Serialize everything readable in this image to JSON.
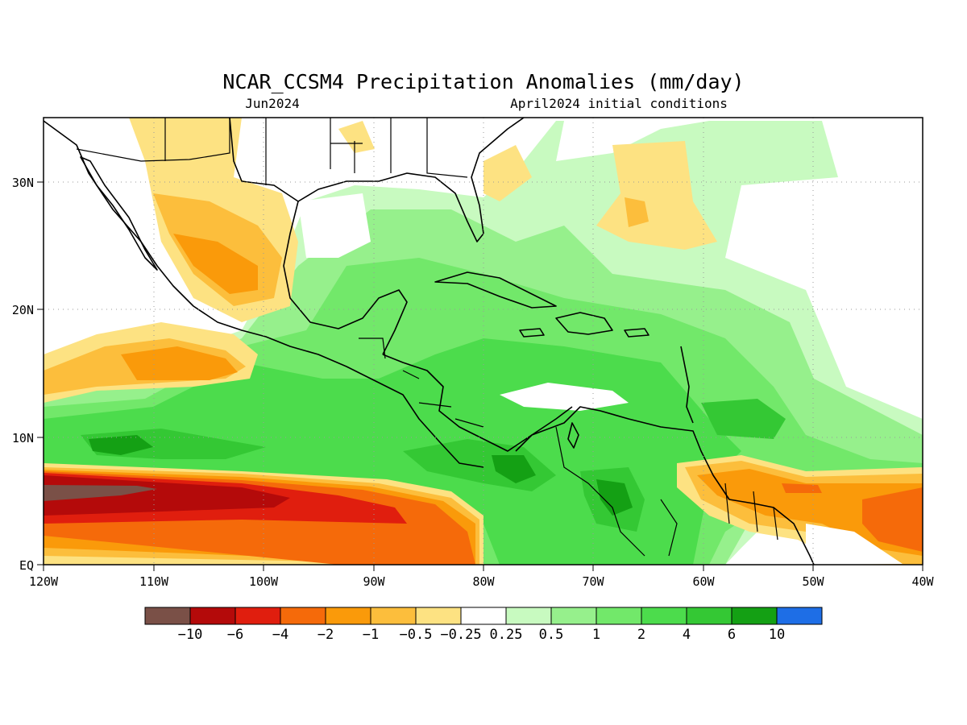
{
  "title": "NCAR_CCSM4 Precipitation Anomalies (mm/day)",
  "subtitle_left": "Jun2024",
  "subtitle_right": "April2024 initial conditions",
  "lon_ticks": [
    "120W",
    "110W",
    "100W",
    "90W",
    "80W",
    "70W",
    "60W",
    "50W",
    "40W"
  ],
  "lat_ticks": [
    "30N",
    "20N",
    "10N",
    "EQ"
  ],
  "colorbar": {
    "colors": [
      "#7a5047",
      "#b40a0a",
      "#e01e0e",
      "#f56a0a",
      "#fa9a0a",
      "#fcbe3c",
      "#fde282",
      "#ffffff",
      "#c8fac0",
      "#96f08c",
      "#72e86a",
      "#4cdc4c",
      "#34c834",
      "#14a014",
      "#1e6ee6"
    ],
    "labels": [
      "−10",
      "−6",
      "−4",
      "−2",
      "−1",
      "−0.5",
      "−0.25",
      "0.25",
      "0.5",
      "1",
      "2",
      "4",
      "6",
      "10"
    ]
  }
}
